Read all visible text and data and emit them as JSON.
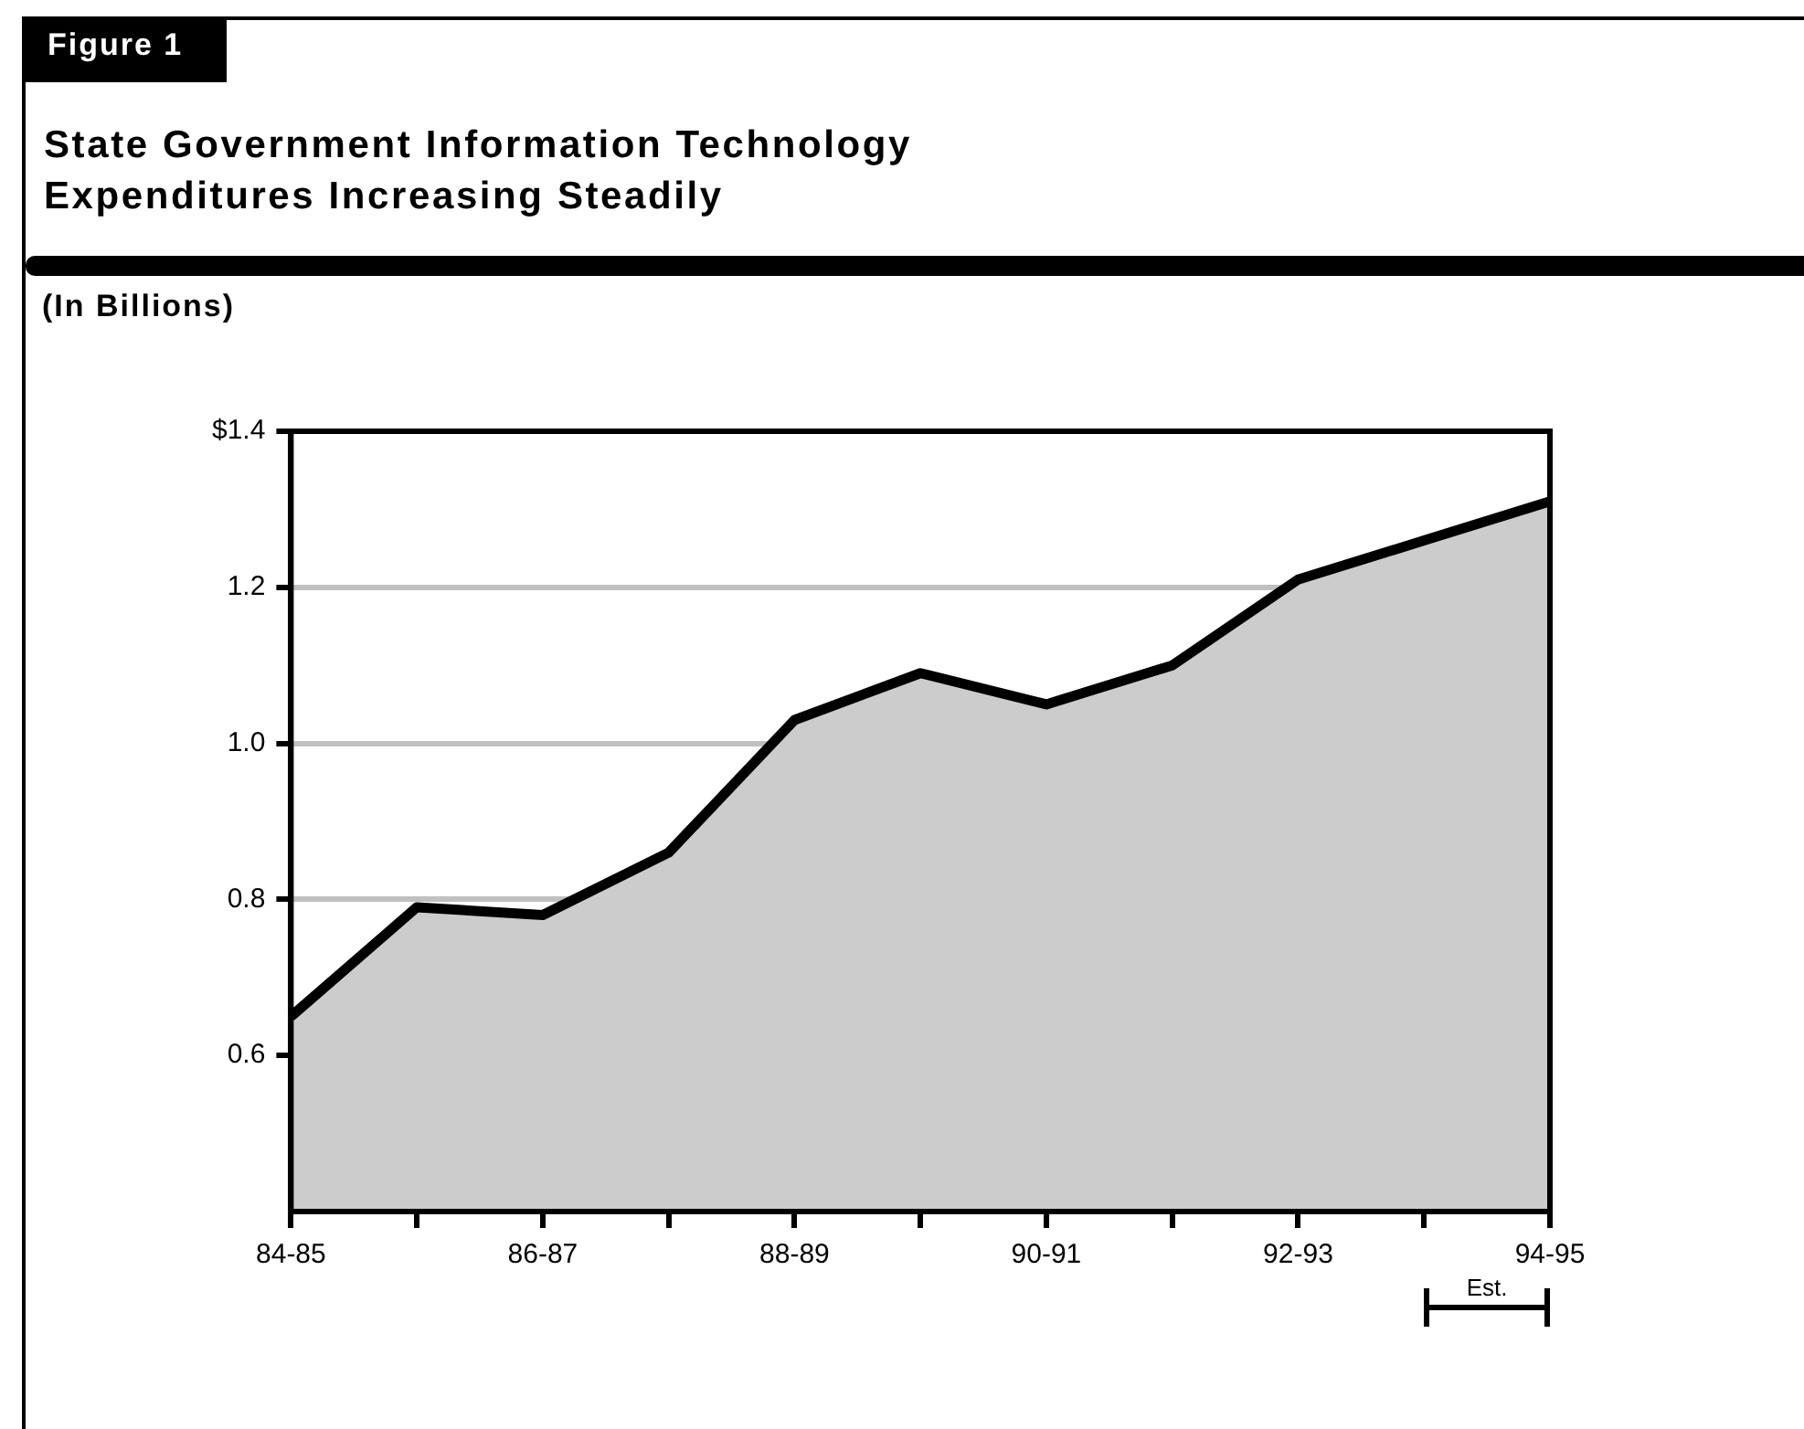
{
  "chart_data": {
    "type": "area",
    "title": "State Government Information Technology Expenditures Increasing Steadily",
    "subtitle": "(In Billions)",
    "annotations": [
      "Figure 1",
      "Est."
    ],
    "categories": [
      "84-85",
      null,
      "86-87",
      null,
      "88-89",
      null,
      "90-91",
      null,
      "92-93",
      null,
      "94-95"
    ],
    "series": [
      {
        "color": "#cccccc",
        "values": [
          0.65,
          0.79,
          0.78,
          0.86,
          1.03,
          1.09,
          1.05,
          1.1,
          1.21,
          1.26,
          1.31
        ]
      }
    ],
    "ylim": [
      0.4,
      1.4
    ],
    "yticks": [
      {
        "value": 1.4,
        "label": "$1.4"
      },
      1.2,
      {
        "value": 1.0,
        "label": "1.0"
      },
      0.8,
      0.6
    ],
    "grid": "y",
    "legend": false,
    "line_style": "solid",
    "marker": "none"
  }
}
